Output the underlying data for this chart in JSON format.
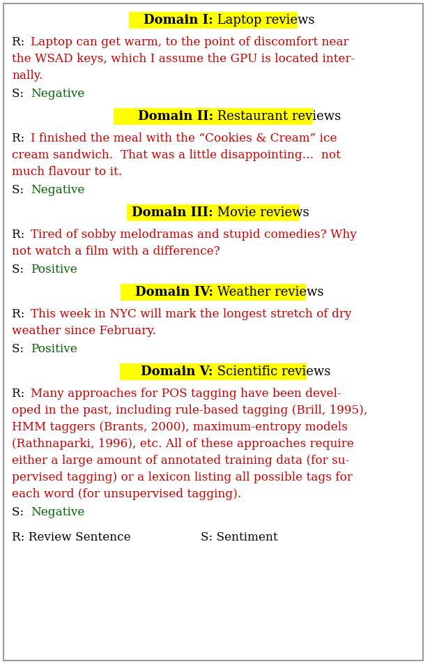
{
  "bg_color": "#ffffff",
  "yellow_bg": "#ffff00",
  "black": "#000000",
  "red": "#cc0000",
  "green": "#006400",
  "font_family": "DejaVu Serif",
  "title_fs": 13.0,
  "body_fs": 12.2,
  "domains": [
    {
      "title_bold": "Domain I:",
      "title_rest": " Laptop reviews",
      "review_lines": [
        "R: Laptop can get warm, to the point of discomfort near",
        "the WSAD keys, which I assume the GPU is located inter-",
        "nally."
      ],
      "sentiment": "Negative",
      "sentiment_polarity": "negative"
    },
    {
      "title_bold": "Domain II:",
      "title_rest": " Restaurant reviews",
      "review_lines": [
        "R: I finished the meal with the “Cookies & Cream” ice",
        "cream sandwich.  That was a little disappointing...  not",
        "much flavour to it."
      ],
      "sentiment": "Negative",
      "sentiment_polarity": "negative"
    },
    {
      "title_bold": "Domain III:",
      "title_rest": " Movie reviews",
      "review_lines": [
        "R: Tired of sobby melodramas and stupid comedies? Why",
        "not watch a film with a difference?"
      ],
      "sentiment": "Positive",
      "sentiment_polarity": "positive"
    },
    {
      "title_bold": "Domain IV:",
      "title_rest": " Weather reviews",
      "review_lines": [
        "R: This week in NYC will mark the longest stretch of dry",
        "weather since February."
      ],
      "sentiment": "Positive",
      "sentiment_polarity": "positive"
    },
    {
      "title_bold": "Domain V:",
      "title_rest": " Scientific reviews",
      "review_lines": [
        "R: Many approaches for POS tagging have been devel-",
        "oped in the past, including rule-based tagging (Brill, 1995),",
        "HMM taggers (Brants, 2000), maximum-entropy models",
        "(Rathnaparki, 1996), etc. All of these approaches require",
        "either a large amount of annotated training data (for su-",
        "pervised tagging) or a lexicon listing all possible tags for",
        "each word (for unsupervised tagging)."
      ],
      "sentiment": "Negative",
      "sentiment_polarity": "negative"
    }
  ],
  "footer_left": "R: Review Sentence",
  "footer_right": "S: Sentiment"
}
